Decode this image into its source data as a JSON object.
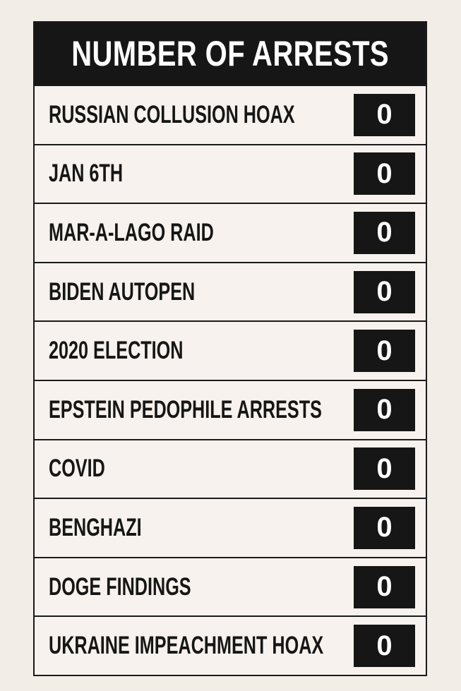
{
  "table": {
    "title": "NUMBER OF ARRESTS",
    "rows": [
      [
        "RUSSIAN COLLUSION HOAX",
        0
      ],
      [
        "JAN 6TH",
        0
      ],
      [
        "MAR-A-LAGO RAID",
        0
      ],
      [
        "BIDEN AUTOPEN",
        0
      ],
      [
        "2020 ELECTION",
        0
      ],
      [
        "EPSTEIN PEDOPHILE ARRESTS",
        0
      ],
      [
        "COVID",
        0
      ],
      [
        "BENGHAZI",
        0
      ],
      [
        "DOGE FINDINGS",
        0
      ],
      [
        "UKRAINE IMPEACHMENT HOAX",
        0
      ]
    ]
  }
}
